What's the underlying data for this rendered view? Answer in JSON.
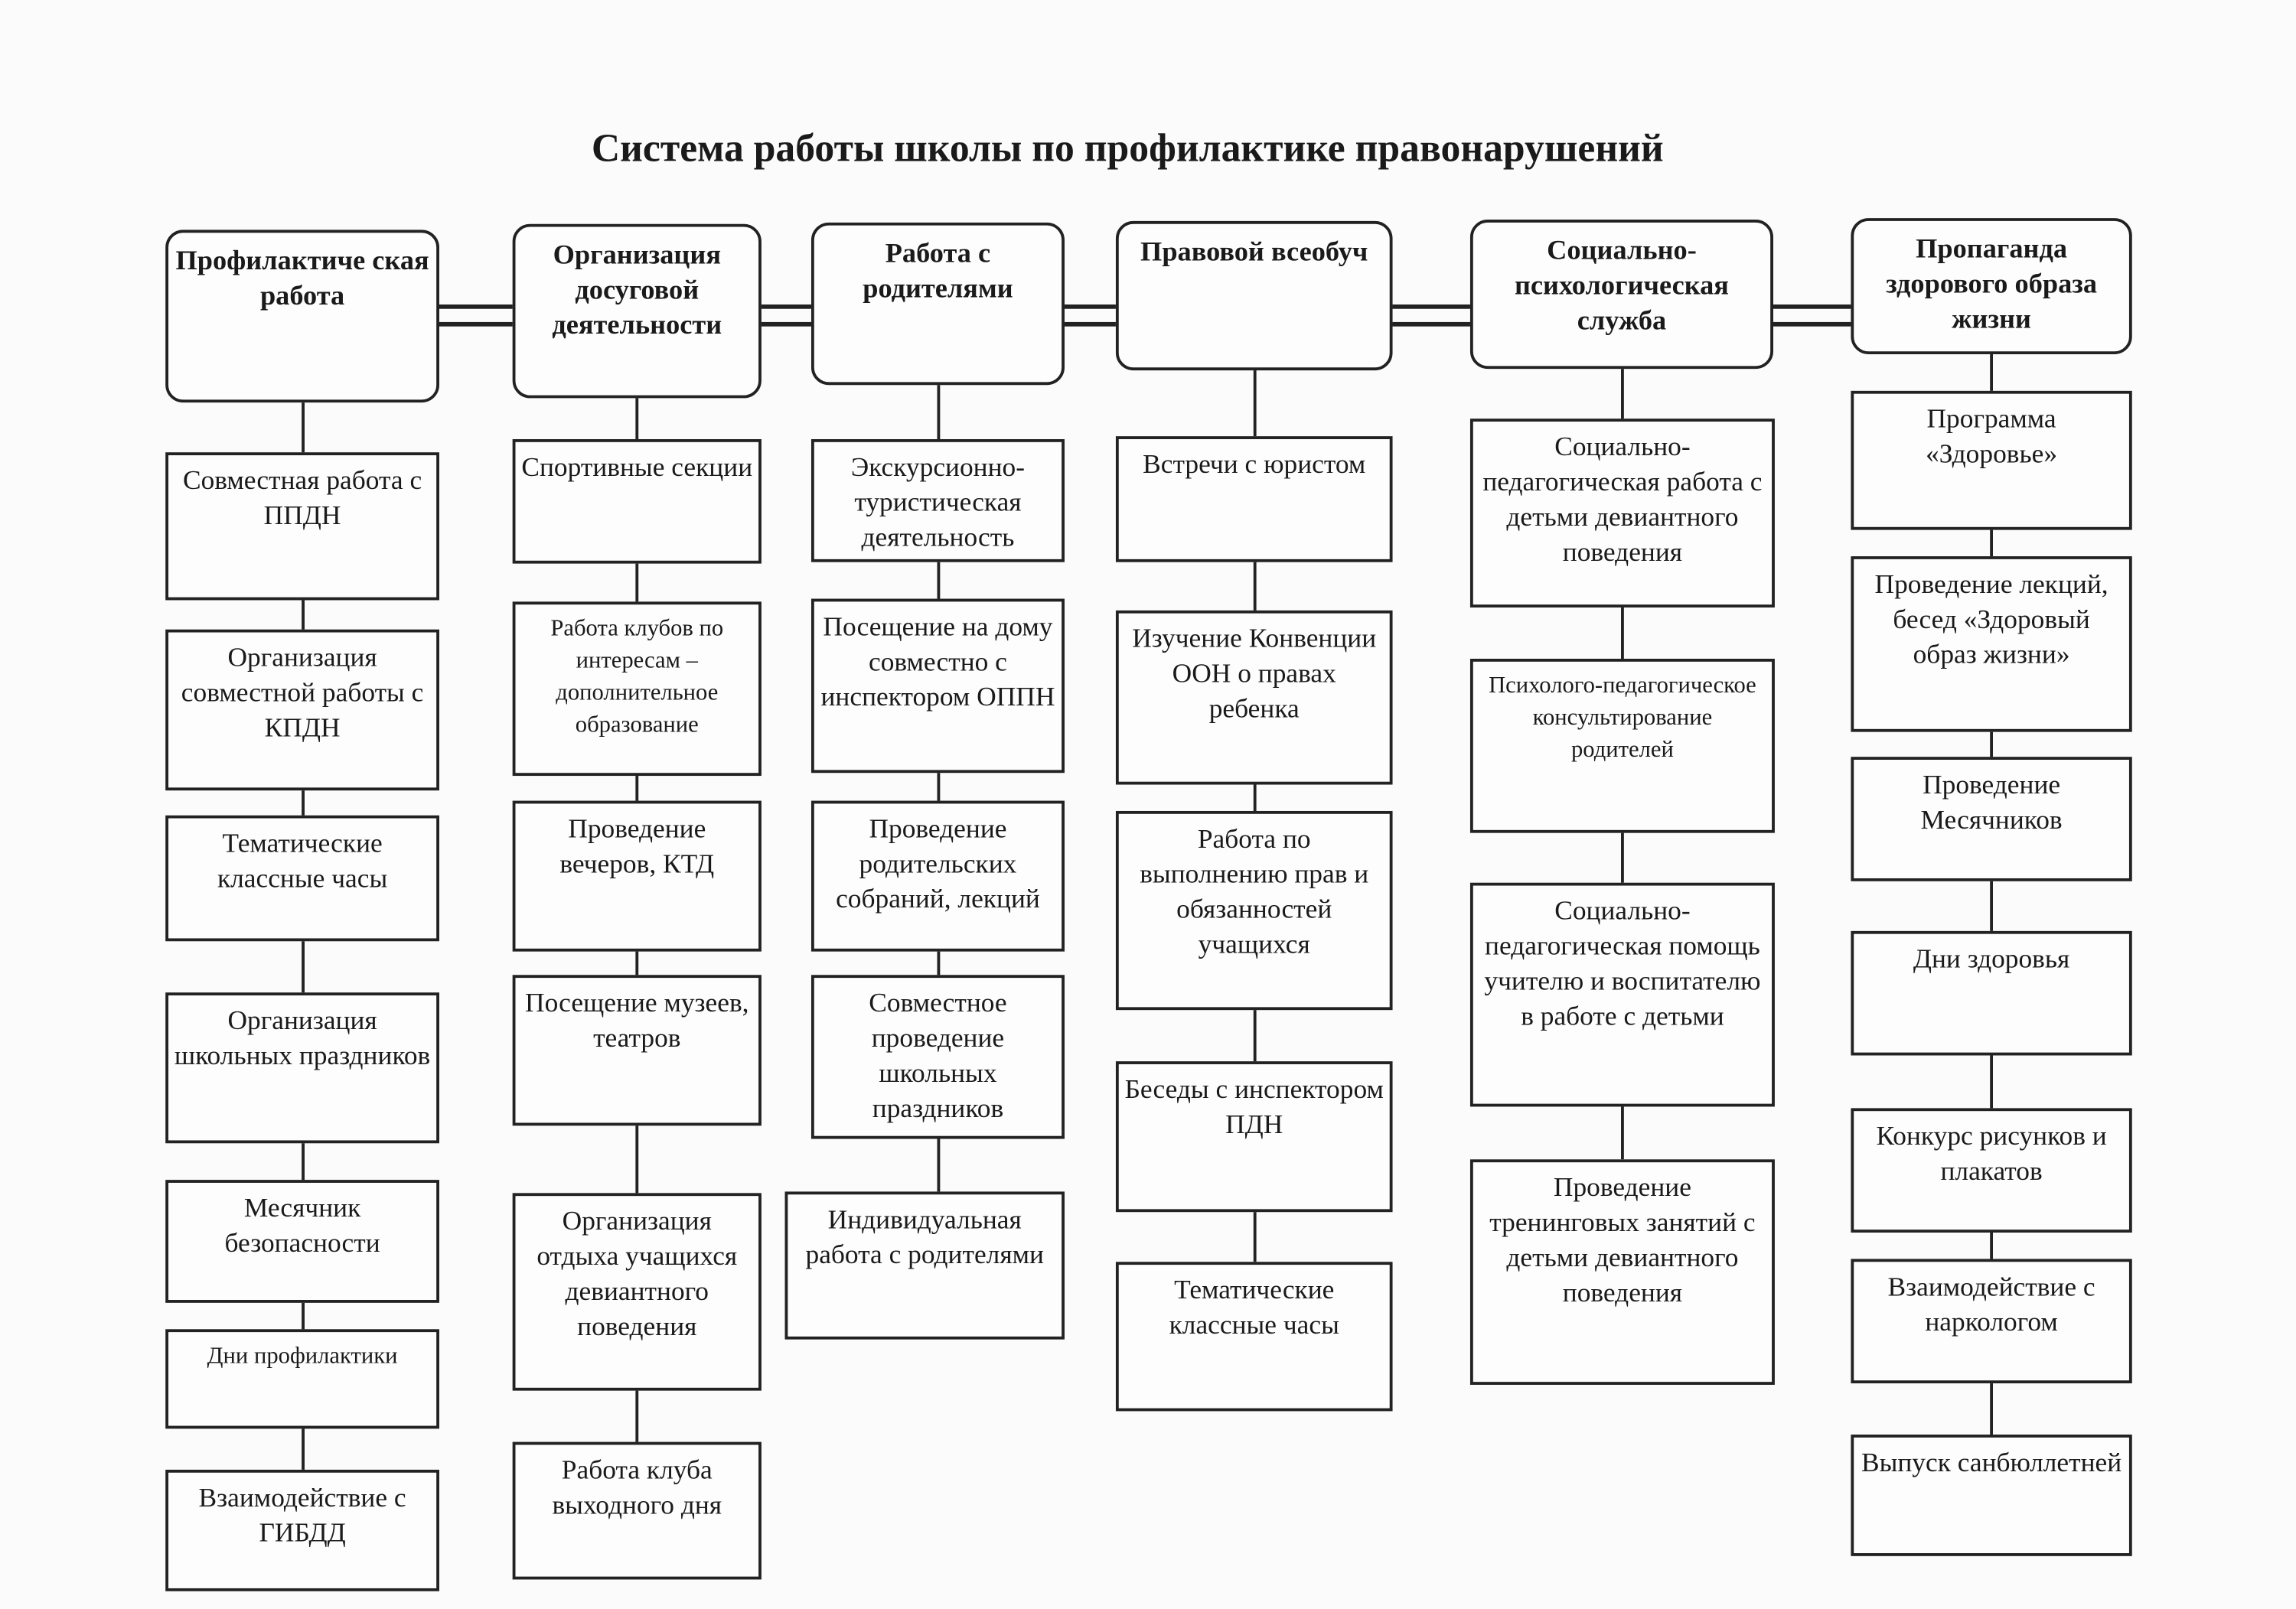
{
  "title": "Система работы школы по профилактике правонарушений",
  "columns": [
    {
      "header": "Профилактиче ская работа",
      "items": [
        "Совместная работа с ППДН",
        "Организация совместной работы с КПДН",
        "Тематические классные часы",
        "Организация школьных праздников",
        "Месячник безопасности",
        "Дни профилактики",
        "Взаимодействие с ГИБДД"
      ]
    },
    {
      "header": "Организация досуговой деятельности",
      "items": [
        "Спортивные секции",
        "Работа клубов по интересам – дополнительное образование",
        "Проведение вечеров, КТД",
        "Посещение музеев, театров",
        "Организация отдыха учащихся девиантного поведения",
        "Работа клуба выходного дня"
      ]
    },
    {
      "header": "Работа с родителями",
      "items": [
        "Экскурсионно-туристическая деятельность",
        "Посещение на дому совместно с инспектором ОППН",
        "Проведение родительских собраний, лекций",
        "Совместное проведение школьных праздников",
        "Индивидуальная работа с родителями"
      ]
    },
    {
      "header": "Правовой всеобуч",
      "items": [
        "Встречи с юристом",
        "Изучение Конвенции ООН о правах ребенка",
        "Работа по выполнению прав и обязанностей учащихся",
        "Беседы с инспектором ПДН",
        "Тематические классные часы"
      ]
    },
    {
      "header": "Социально-психологическая служба",
      "items": [
        "Социально-педагогическая работа с детьми девиантного поведения",
        "Психолого-педагогическое консультирование родителей",
        "Социально-педагогическая помощь учителю и воспитателю в работе с детьми",
        "Проведение тренинговых занятий с детьми девиантного поведения"
      ]
    },
    {
      "header": "Пропаганда здорового образа жизни",
      "items": [
        "Программа «Здоровье»",
        "Проведение лекций, бесед «Здоровый образ жизни»",
        "Проведение Месячников",
        "Дни здоровья",
        "Конкурс рисунков и плакатов",
        "Взаимодействие с наркологом",
        "Выпуск санбюллетней"
      ]
    }
  ]
}
